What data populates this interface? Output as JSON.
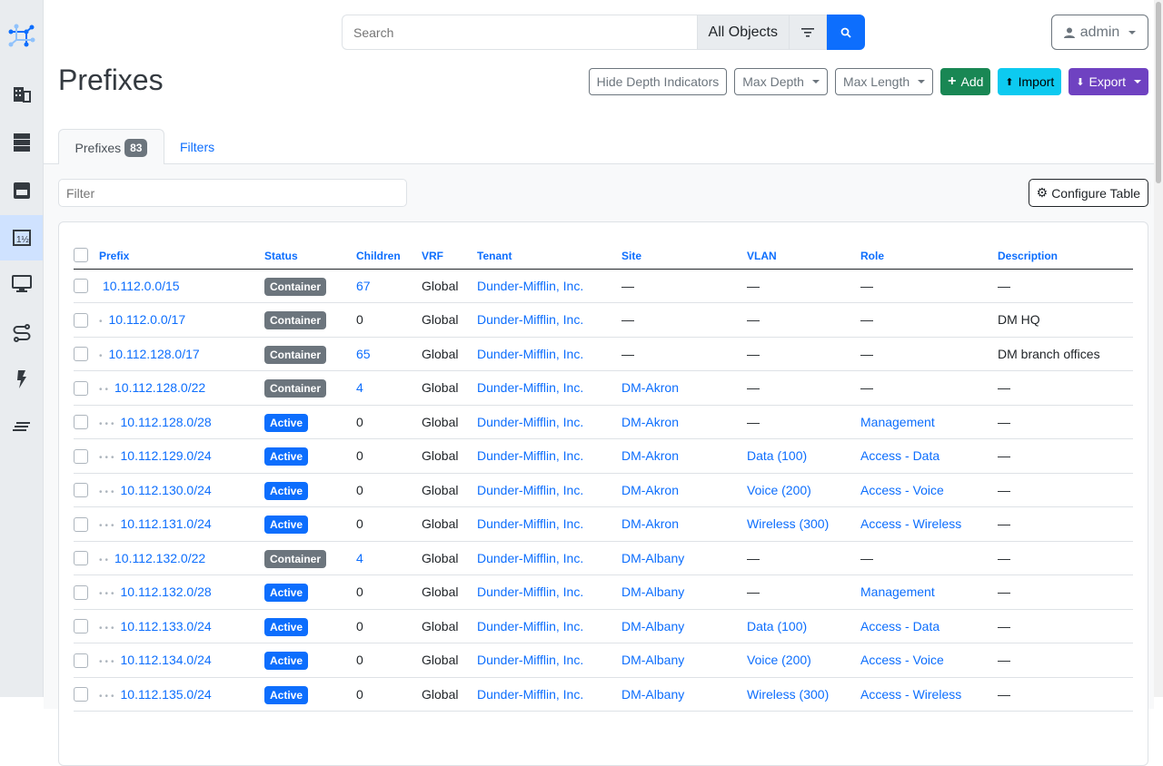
{
  "sidebar": {
    "items": [
      {
        "icon": "organization-icon"
      },
      {
        "icon": "devices-icon"
      },
      {
        "icon": "connections-icon"
      },
      {
        "icon": "ipam-icon",
        "active": true
      },
      {
        "icon": "virtualization-icon"
      },
      {
        "icon": "circuits-icon"
      },
      {
        "icon": "power-icon"
      },
      {
        "icon": "other-icon"
      }
    ]
  },
  "search": {
    "placeholder": "Search",
    "scope": "All Objects"
  },
  "user": {
    "name": "admin"
  },
  "page": {
    "title": "Prefixes"
  },
  "actions": {
    "hide_depth": "Hide Depth Indicators",
    "max_depth": "Max Depth",
    "max_length": "Max Length",
    "add": "Add",
    "import": "Import",
    "export": "Export"
  },
  "colors": {
    "primary": "#0d6efd",
    "add": "#198754",
    "import": "#0dcaf0",
    "export": "#6f42c1",
    "container": "#6c757d",
    "active": "#0d6efd"
  },
  "tabs": [
    {
      "label": "Prefixes",
      "count": "83"
    },
    {
      "label": "Filters"
    }
  ],
  "filter": {
    "placeholder": "Filter"
  },
  "configure_table": "Configure Table",
  "table": {
    "columns": [
      "Prefix",
      "Status",
      "Children",
      "VRF",
      "Tenant",
      "Site",
      "VLAN",
      "Role",
      "Description"
    ],
    "rows": [
      {
        "depth": 0,
        "prefix": "10.112.0.0/15",
        "status": "Container",
        "children": "67",
        "vrf": "Global",
        "tenant": "Dunder-Mifflin, Inc.",
        "site": "—",
        "vlan": "—",
        "role": "—",
        "description": "—"
      },
      {
        "depth": 1,
        "prefix": "10.112.0.0/17",
        "status": "Container",
        "children": "0",
        "vrf": "Global",
        "tenant": "Dunder-Mifflin, Inc.",
        "site": "—",
        "vlan": "—",
        "role": "—",
        "description": "DM HQ"
      },
      {
        "depth": 1,
        "prefix": "10.112.128.0/17",
        "status": "Container",
        "children": "65",
        "vrf": "Global",
        "tenant": "Dunder-Mifflin, Inc.",
        "site": "—",
        "vlan": "—",
        "role": "—",
        "description": "DM branch offices"
      },
      {
        "depth": 2,
        "prefix": "10.112.128.0/22",
        "status": "Container",
        "children": "4",
        "vrf": "Global",
        "tenant": "Dunder-Mifflin, Inc.",
        "site": "DM-Akron",
        "vlan": "—",
        "role": "—",
        "description": "—"
      },
      {
        "depth": 3,
        "prefix": "10.112.128.0/28",
        "status": "Active",
        "children": "0",
        "vrf": "Global",
        "tenant": "Dunder-Mifflin, Inc.",
        "site": "DM-Akron",
        "vlan": "—",
        "role": "Management",
        "description": "—"
      },
      {
        "depth": 3,
        "prefix": "10.112.129.0/24",
        "status": "Active",
        "children": "0",
        "vrf": "Global",
        "tenant": "Dunder-Mifflin, Inc.",
        "site": "DM-Akron",
        "vlan": "Data (100)",
        "role": "Access - Data",
        "description": "—"
      },
      {
        "depth": 3,
        "prefix": "10.112.130.0/24",
        "status": "Active",
        "children": "0",
        "vrf": "Global",
        "tenant": "Dunder-Mifflin, Inc.",
        "site": "DM-Akron",
        "vlan": "Voice (200)",
        "role": "Access - Voice",
        "description": "—"
      },
      {
        "depth": 3,
        "prefix": "10.112.131.0/24",
        "status": "Active",
        "children": "0",
        "vrf": "Global",
        "tenant": "Dunder-Mifflin, Inc.",
        "site": "DM-Akron",
        "vlan": "Wireless (300)",
        "role": "Access - Wireless",
        "description": "—"
      },
      {
        "depth": 2,
        "prefix": "10.112.132.0/22",
        "status": "Container",
        "children": "4",
        "vrf": "Global",
        "tenant": "Dunder-Mifflin, Inc.",
        "site": "DM-Albany",
        "vlan": "—",
        "role": "—",
        "description": "—"
      },
      {
        "depth": 3,
        "prefix": "10.112.132.0/28",
        "status": "Active",
        "children": "0",
        "vrf": "Global",
        "tenant": "Dunder-Mifflin, Inc.",
        "site": "DM-Albany",
        "vlan": "—",
        "role": "Management",
        "description": "—"
      },
      {
        "depth": 3,
        "prefix": "10.112.133.0/24",
        "status": "Active",
        "children": "0",
        "vrf": "Global",
        "tenant": "Dunder-Mifflin, Inc.",
        "site": "DM-Albany",
        "vlan": "Data (100)",
        "role": "Access - Data",
        "description": "—"
      },
      {
        "depth": 3,
        "prefix": "10.112.134.0/24",
        "status": "Active",
        "children": "0",
        "vrf": "Global",
        "tenant": "Dunder-Mifflin, Inc.",
        "site": "DM-Albany",
        "vlan": "Voice (200)",
        "role": "Access - Voice",
        "description": "—"
      },
      {
        "depth": 3,
        "prefix": "10.112.135.0/24",
        "status": "Active",
        "children": "0",
        "vrf": "Global",
        "tenant": "Dunder-Mifflin, Inc.",
        "site": "DM-Albany",
        "vlan": "Wireless (300)",
        "role": "Access - Wireless",
        "description": "—"
      }
    ]
  }
}
